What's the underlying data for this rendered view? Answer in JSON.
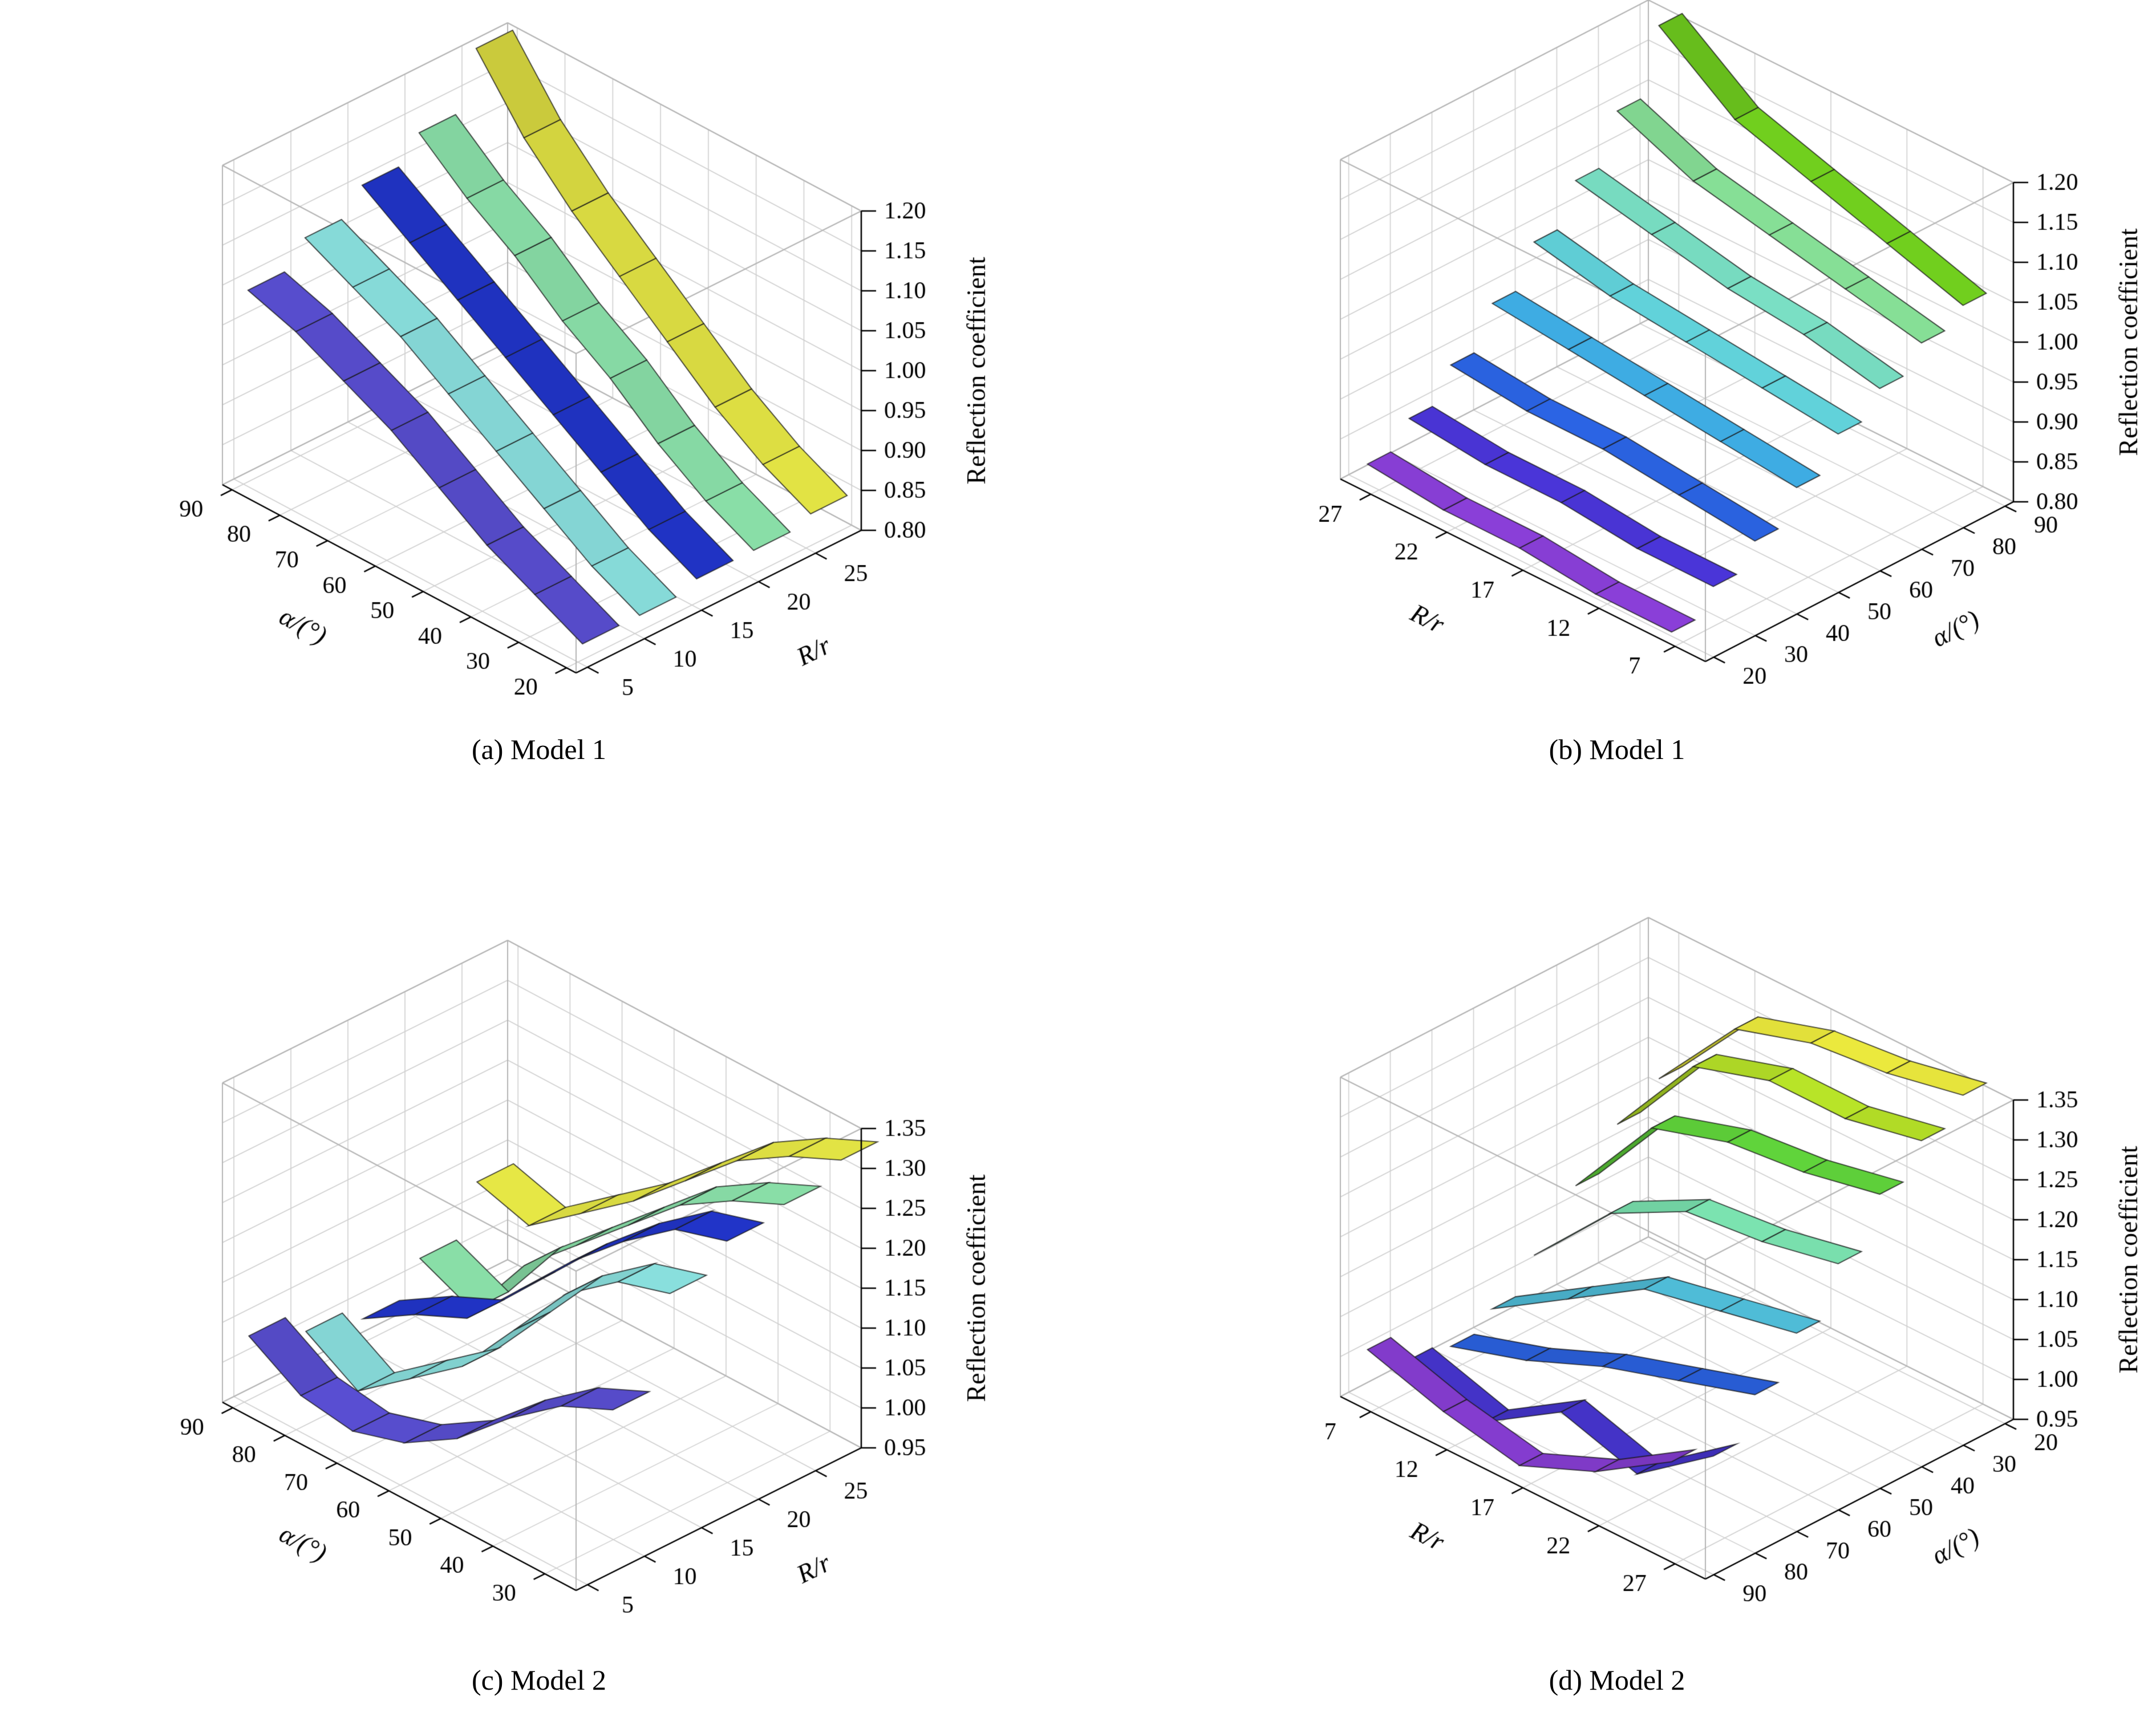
{
  "page": {
    "background": "#ffffff"
  },
  "figure": {
    "panels": [
      {
        "id": "a",
        "caption": "(a) Model 1"
      },
      {
        "id": "b",
        "caption": "(b) Model 1"
      },
      {
        "id": "c",
        "caption": "(c) Model 2"
      },
      {
        "id": "d",
        "caption": "(d) Model 2"
      }
    ],
    "colors": {
      "grid": "#cfcfcf",
      "box": "#b5b5b5",
      "axis": "#000000",
      "facet_edge": "rgba(25,25,25,0.8)"
    }
  },
  "chart_data": [
    {
      "panel": "a",
      "type": "ribbon3d",
      "title": "(a) Model 1",
      "model": "Model 1",
      "ribbons_run_along": "alpha",
      "alpha_label": "α/(°)",
      "rr_label": "R/r",
      "zlabel": "Reflection coefficient",
      "zlim": [
        0.8,
        1.2
      ],
      "alpha_deg": [
        20,
        30,
        40,
        50,
        60,
        70,
        80,
        90
      ],
      "R_over_r": [
        7,
        12,
        17,
        22,
        27
      ],
      "values_alpha_rows_rr_cols": [
        [
          0.82,
          0.82,
          0.83,
          0.83,
          0.84
        ],
        [
          0.85,
          0.85,
          0.86,
          0.86,
          0.87
        ],
        [
          0.88,
          0.89,
          0.9,
          0.9,
          0.91
        ],
        [
          0.92,
          0.93,
          0.94,
          0.95,
          0.96
        ],
        [
          0.96,
          0.97,
          0.98,
          0.99,
          1.01
        ],
        [
          0.99,
          1.01,
          1.02,
          1.04,
          1.06
        ],
        [
          1.02,
          1.04,
          1.06,
          1.08,
          1.12
        ],
        [
          1.04,
          1.07,
          1.1,
          1.13,
          1.2
        ]
      ],
      "alpha_tick_labels": [
        "90",
        "80",
        "70",
        "60",
        "50",
        "40",
        "30",
        "20"
      ],
      "rr_tick_labels": [
        "5",
        "10",
        "15",
        "20",
        "25"
      ],
      "z_tick_labels": [
        "0.80",
        "0.85",
        "0.90",
        "0.95",
        "1.00",
        "1.05",
        "1.10",
        "1.15",
        "1.20"
      ],
      "ribbon_colors": [
        "#5b50d6",
        "#8fe8e6",
        "#2236d0",
        "#92ecb2",
        "#f0f148"
      ]
    },
    {
      "panel": "b",
      "type": "ribbon3d",
      "title": "(b) Model 1",
      "model": "Model 1",
      "ribbons_run_along": "rr",
      "alpha_label": "α/(°)",
      "rr_label": "R/r",
      "zlabel": "Reflection coefficient",
      "zlim": [
        0.8,
        1.2
      ],
      "alpha_deg": [
        20,
        30,
        40,
        50,
        60,
        70,
        80,
        90
      ],
      "R_over_r": [
        7,
        12,
        17,
        22,
        27
      ],
      "values_alpha_rows_rr_cols": [
        [
          0.82,
          0.82,
          0.83,
          0.83,
          0.84
        ],
        [
          0.85,
          0.85,
          0.86,
          0.86,
          0.87
        ],
        [
          0.88,
          0.89,
          0.9,
          0.9,
          0.91
        ],
        [
          0.92,
          0.93,
          0.94,
          0.95,
          0.96
        ],
        [
          0.96,
          0.97,
          0.98,
          0.99,
          1.01
        ],
        [
          0.99,
          1.01,
          1.02,
          1.04,
          1.06
        ],
        [
          1.02,
          1.04,
          1.06,
          1.08,
          1.12
        ],
        [
          1.04,
          1.07,
          1.1,
          1.13,
          1.2
        ]
      ],
      "alpha_tick_labels": [
        "20",
        "30",
        "40",
        "50",
        "60",
        "70",
        "80",
        "90"
      ],
      "rr_tick_labels": [
        "27",
        "22",
        "17",
        "12",
        "7"
      ],
      "z_tick_labels": [
        "0.80",
        "0.85",
        "0.90",
        "0.95",
        "1.00",
        "1.05",
        "1.10",
        "1.15",
        "1.20"
      ],
      "ribbon_colors": [
        "#8a3fd8",
        "#4a35d8",
        "#2b64e4",
        "#3fb0e8",
        "#63d6de",
        "#7ce4c8",
        "#8ce89c",
        "#78dc20"
      ]
    },
    {
      "panel": "c",
      "type": "ribbon3d",
      "title": "(c) Model 2",
      "model": "Model 2",
      "ribbons_run_along": "alpha",
      "alpha_label": "α/(°)",
      "rr_label": "R/r",
      "zlabel": "Reflection coefficient",
      "zlim": [
        0.95,
        1.35
      ],
      "alpha_deg": [
        20,
        30,
        40,
        50,
        60,
        70,
        80,
        90
      ],
      "R_over_r": [
        7,
        12,
        17,
        22,
        27
      ],
      "values_alpha_rows_rr_cols": [
        [
          1.18,
          1.29,
          1.32,
          1.33,
          1.35
        ],
        [
          1.15,
          1.27,
          1.3,
          1.3,
          1.32
        ],
        [
          1.1,
          1.22,
          1.25,
          1.26,
          1.28
        ],
        [
          1.04,
          1.14,
          1.19,
          1.2,
          1.22
        ],
        [
          1.0,
          1.06,
          1.12,
          1.14,
          1.16
        ],
        [
          0.98,
          1.01,
          1.05,
          1.08,
          1.11
        ],
        [
          0.99,
          0.96,
          1.02,
          0.99,
          1.06
        ],
        [
          1.03,
          1.0,
          0.98,
          1.02,
          1.08
        ]
      ],
      "alpha_tick_labels": [
        "90",
        "80",
        "70",
        "60",
        "50",
        "40",
        "30"
      ],
      "rr_tick_labels": [
        "5",
        "10",
        "15",
        "20",
        "25"
      ],
      "z_tick_labels": [
        "0.95",
        "1.00",
        "1.05",
        "1.10",
        "1.15",
        "1.20",
        "1.25",
        "1.30",
        "1.35"
      ],
      "ribbon_colors": [
        "#5b50d6",
        "#8fe8e6",
        "#2236d0",
        "#92ecb2",
        "#f0f148"
      ]
    },
    {
      "panel": "d",
      "type": "ribbon3d",
      "title": "(d) Model 2",
      "model": "Model 2",
      "ribbons_run_along": "rr",
      "alpha_label": "α/(°)",
      "rr_label": "R/r",
      "zlabel": "Reflection coefficient",
      "zlim": [
        0.95,
        1.35
      ],
      "alpha_deg": [
        20,
        30,
        40,
        50,
        60,
        70,
        80,
        90
      ],
      "R_over_r": [
        7,
        12,
        17,
        22,
        27
      ],
      "values_alpha_rows_rr_cols": [
        [
          1.18,
          1.29,
          1.32,
          1.33,
          1.35
        ],
        [
          1.15,
          1.27,
          1.3,
          1.3,
          1.32
        ],
        [
          1.1,
          1.22,
          1.25,
          1.26,
          1.28
        ],
        [
          1.04,
          1.14,
          1.19,
          1.2,
          1.22
        ],
        [
          1.0,
          1.06,
          1.12,
          1.14,
          1.16
        ],
        [
          0.98,
          1.01,
          1.05,
          1.08,
          1.11
        ],
        [
          0.99,
          0.96,
          1.02,
          0.99,
          1.06
        ],
        [
          1.03,
          1.0,
          0.98,
          1.02,
          1.08
        ]
      ],
      "alpha_tick_labels": [
        "90",
        "80",
        "70",
        "60",
        "50",
        "40",
        "30",
        "20"
      ],
      "rr_tick_labels": [
        "7",
        "12",
        "17",
        "22",
        "27"
      ],
      "z_tick_labels": [
        "0.95",
        "1.00",
        "1.05",
        "1.10",
        "1.15",
        "1.20",
        "1.25",
        "1.30",
        "1.35"
      ],
      "ribbon_colors": [
        "#f0ee3e",
        "#b8e428",
        "#62d83c",
        "#7ee8b4",
        "#52c4e0",
        "#2b62e0",
        "#4836d4",
        "#8a3fd8"
      ]
    }
  ]
}
